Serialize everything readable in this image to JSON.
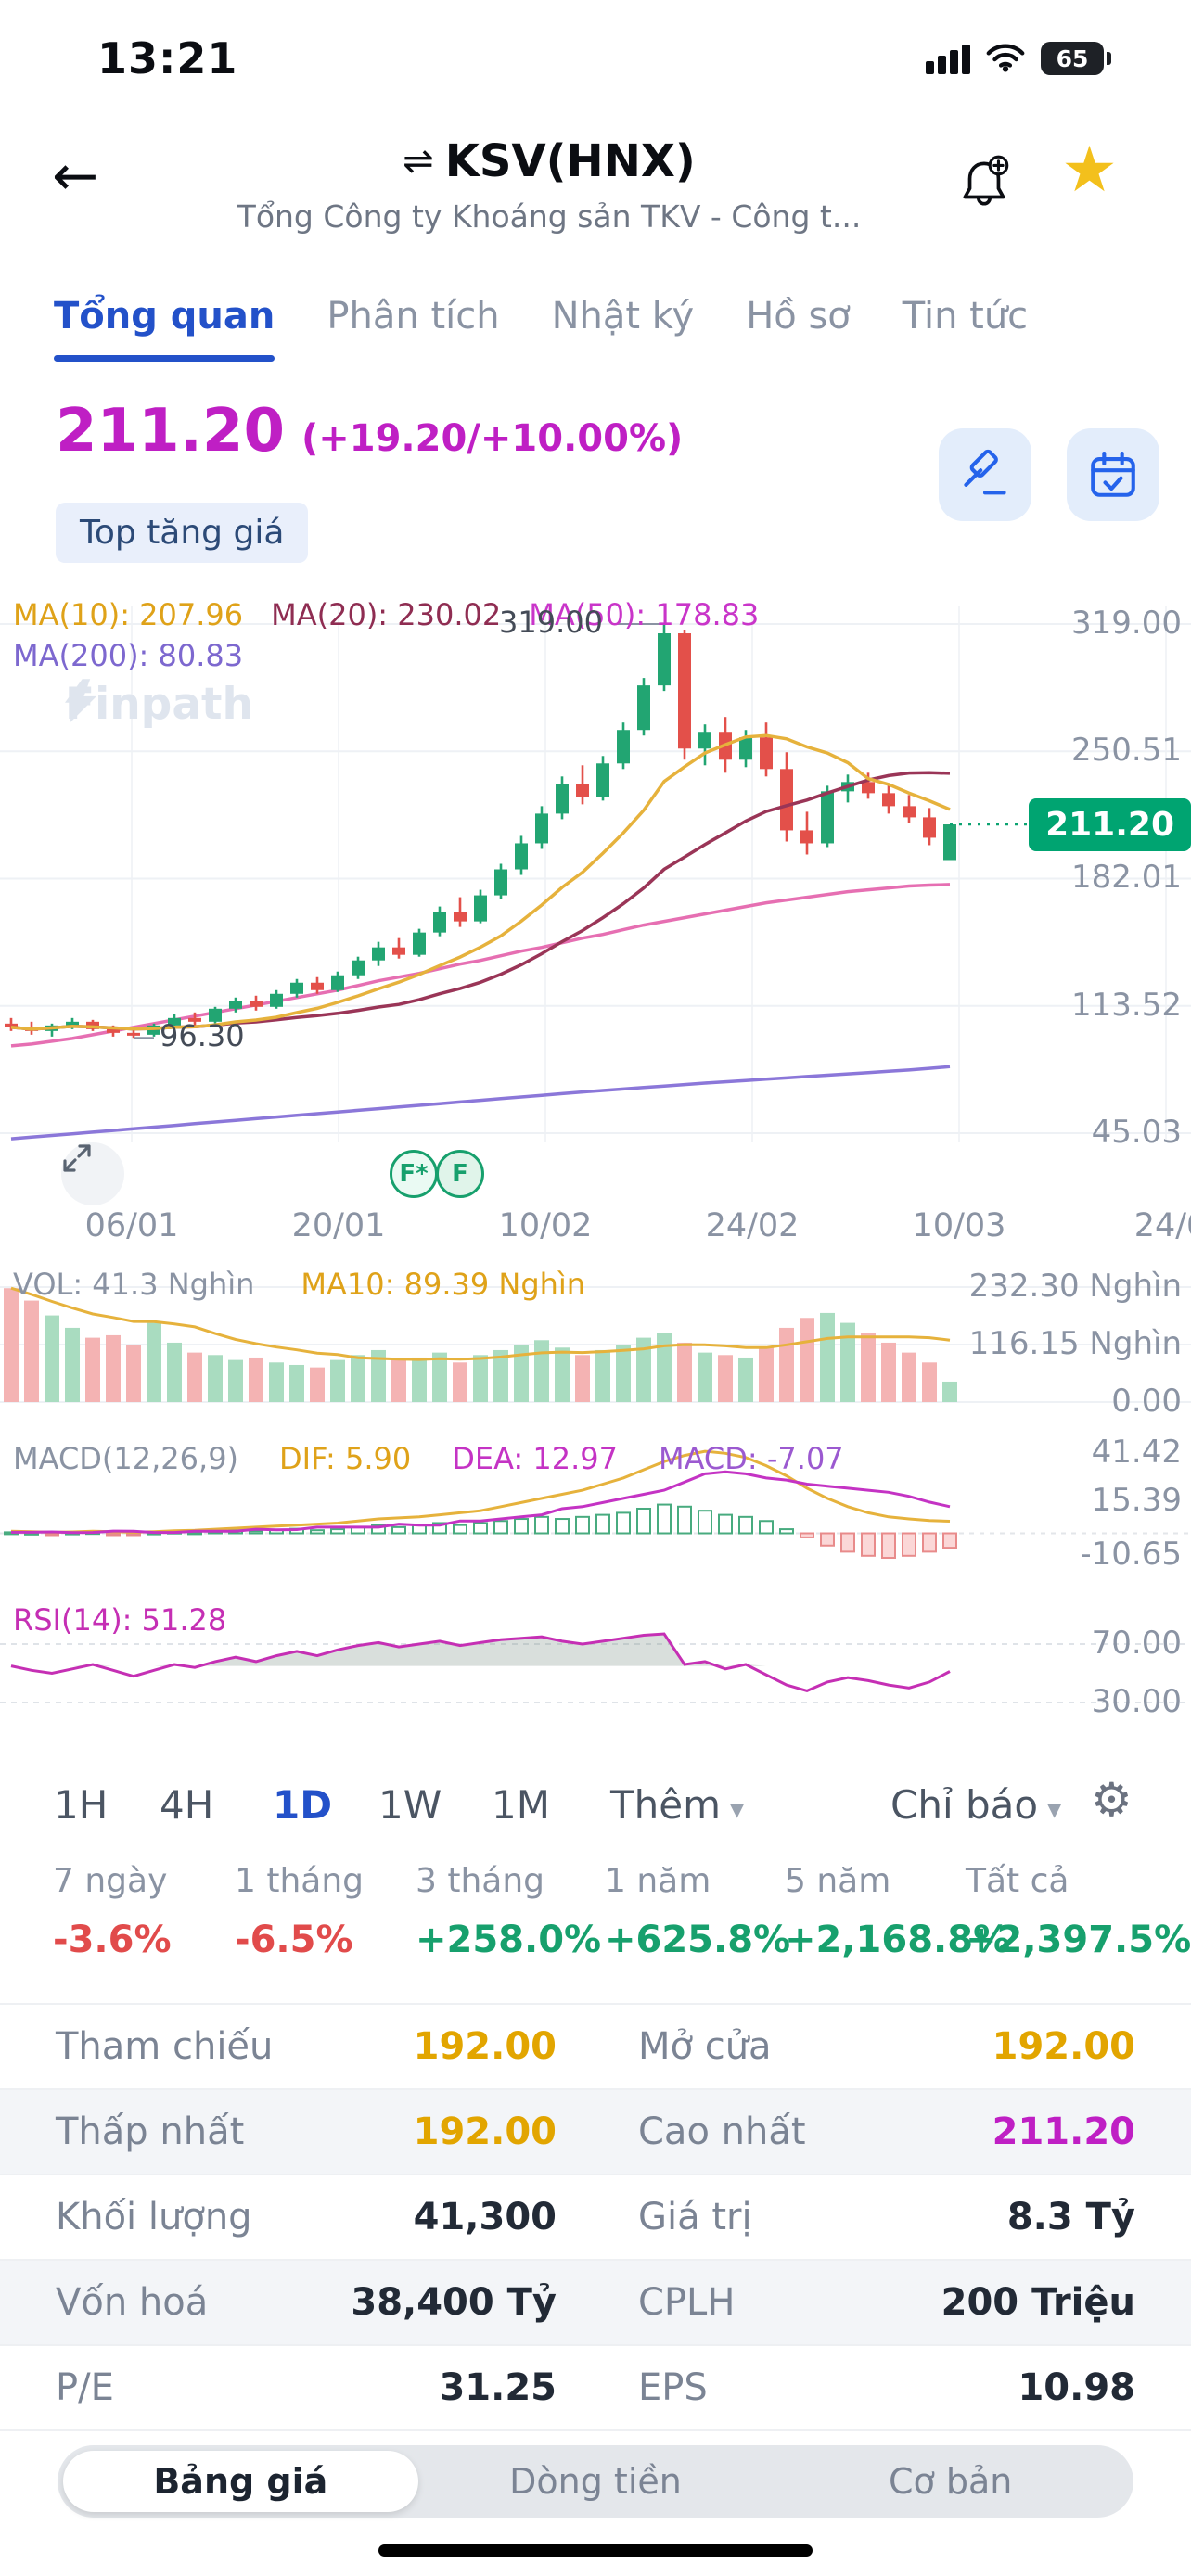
{
  "status_bar": {
    "time": "13:21",
    "battery_level": "65"
  },
  "icons": {
    "back": "←",
    "compare": "⇌",
    "star": "★",
    "caret": "▾",
    "gear": "⚙"
  },
  "header": {
    "title": "KSV(HNX)",
    "subtitle": "Tổng Công ty Khoáng sản TKV - Công t..."
  },
  "tabs": {
    "items": [
      {
        "label": "Tổng quan",
        "active": true
      },
      {
        "label": "Phân tích",
        "active": false
      },
      {
        "label": "Nhật ký",
        "active": false
      },
      {
        "label": "Hồ sơ",
        "active": false
      },
      {
        "label": "Tin tức",
        "active": false
      }
    ]
  },
  "quote": {
    "price": "211.20",
    "change": "(+19.20/+10.00%)",
    "badge": "Top tăng giá"
  },
  "chart": {
    "ma10_label": "MA(10): 207.96",
    "ma20_label": "MA(20): 230.02",
    "ma50_label": "MA(50): 178.83",
    "ma200_label": "MA(200): 80.83",
    "watermark": "Finpath",
    "vol_label": "VOL: 41.3 Nghìn",
    "vol_ma_label": "MA10: 89.39 Nghìn",
    "macd_label": "MACD(12,26,9)",
    "dif_label": "DIF: 5.90",
    "dea_label": "DEA: 12.97",
    "macd_val_label": "MACD: -7.07",
    "rsi_label": "RSI(14): 51.28",
    "fscore_badges": [
      "F*",
      "F"
    ]
  },
  "chart_data": {
    "type": "candlestick+indicators",
    "x_ticks": [
      "06/01",
      "20/01",
      "10/02",
      "24/02",
      "10/03",
      "24/0"
    ],
    "main": {
      "y_ticks": [
        "319.00",
        "250.51",
        "182.01",
        "113.52",
        "45.03"
      ],
      "y_max": 319.0,
      "y_min": 45.03,
      "annotations": {
        "peak": "319.00",
        "low": "96.30"
      },
      "last_price": 211.2,
      "candles": [
        [
          104,
          107,
          100,
          102
        ],
        [
          102,
          105,
          98,
          100
        ],
        [
          100,
          104,
          97,
          103
        ],
        [
          103,
          107,
          101,
          105
        ],
        [
          105,
          106,
          100,
          101
        ],
        [
          101,
          103,
          97,
          99
        ],
        [
          99,
          101,
          96.3,
          98
        ],
        [
          98,
          104,
          97,
          103
        ],
        [
          103,
          109,
          102,
          107
        ],
        [
          107,
          110,
          103,
          105
        ],
        [
          105,
          113,
          104,
          112
        ],
        [
          112,
          118,
          110,
          116
        ],
        [
          116,
          119,
          111,
          113
        ],
        [
          113,
          122,
          112,
          120
        ],
        [
          120,
          128,
          118,
          126
        ],
        [
          126,
          129,
          120,
          122
        ],
        [
          122,
          132,
          121,
          130
        ],
        [
          130,
          140,
          128,
          138
        ],
        [
          138,
          148,
          135,
          145
        ],
        [
          145,
          150,
          139,
          141
        ],
        [
          141,
          155,
          140,
          153
        ],
        [
          153,
          167,
          151,
          164
        ],
        [
          164,
          172,
          156,
          159
        ],
        [
          159,
          176,
          158,
          173
        ],
        [
          173,
          190,
          171,
          187
        ],
        [
          187,
          205,
          184,
          201
        ],
        [
          201,
          221,
          198,
          217
        ],
        [
          217,
          237,
          214,
          233
        ],
        [
          233,
          243,
          222,
          226
        ],
        [
          226,
          248,
          224,
          244
        ],
        [
          244,
          266,
          241,
          262
        ],
        [
          262,
          290,
          259,
          286
        ],
        [
          286,
          319,
          283,
          314
        ],
        [
          314,
          316,
          246,
          252
        ],
        [
          252,
          265,
          243,
          261
        ],
        [
          261,
          269,
          239,
          246
        ],
        [
          246,
          262,
          242,
          258
        ],
        [
          258,
          266,
          237,
          241
        ],
        [
          241,
          250,
          202,
          208
        ],
        [
          208,
          218,
          195,
          201
        ],
        [
          201,
          232,
          199,
          229
        ],
        [
          229,
          238,
          223,
          234
        ],
        [
          234,
          239,
          225,
          228
        ],
        [
          228,
          233,
          217,
          221
        ],
        [
          221,
          227,
          212,
          215
        ],
        [
          215,
          220,
          200,
          204
        ],
        [
          192,
          211.2,
          192,
          211.2
        ]
      ],
      "ma50": [
        92,
        93,
        94.5,
        96,
        98,
        100,
        102,
        104,
        106,
        108,
        110,
        112,
        114,
        116,
        118,
        120,
        122,
        124.5,
        127,
        129,
        131,
        133.5,
        136,
        138,
        140.5,
        143,
        145,
        147.5,
        150,
        152,
        154.5,
        157,
        159,
        161,
        163,
        165,
        167,
        169,
        170.5,
        172,
        173.5,
        175,
        176,
        177,
        178,
        178.5,
        178.83
      ],
      "ma200": [
        42,
        42.9,
        43.8,
        44.7,
        45.6,
        46.5,
        47.4,
        48.3,
        49.2,
        50.1,
        51,
        51.9,
        52.8,
        53.7,
        54.6,
        55.5,
        56.4,
        57.3,
        58.2,
        59.1,
        60,
        60.9,
        61.8,
        62.7,
        63.6,
        64.5,
        65.4,
        66.3,
        67.2,
        68,
        68.8,
        69.6,
        70.4,
        71.2,
        72,
        72.7,
        73.4,
        74.1,
        74.8,
        75.5,
        76.2,
        76.9,
        77.6,
        78.3,
        79,
        79.9,
        80.83
      ]
    },
    "volume": {
      "y_ticks": [
        "232.30 Nghìn",
        "116.15 Nghìn",
        "0.00"
      ],
      "max": 232.3,
      "values": [
        230,
        205,
        175,
        150,
        130,
        135,
        115,
        160,
        120,
        100,
        95,
        85,
        90,
        80,
        75,
        70,
        85,
        95,
        105,
        85,
        90,
        100,
        80,
        95,
        105,
        115,
        125,
        110,
        95,
        105,
        115,
        130,
        140,
        120,
        100,
        95,
        90,
        110,
        150,
        170,
        180,
        160,
        140,
        120,
        100,
        80,
        41.3
      ]
    },
    "macd": {
      "y_ticks": [
        "41.42",
        "15.39",
        "-10.65"
      ],
      "dif": [
        1,
        0.8,
        0.5,
        0.7,
        1,
        0.8,
        0.5,
        0.8,
        1.2,
        1.5,
        2,
        2.5,
        3,
        3.5,
        4,
        4.5,
        5,
        6,
        7,
        7.5,
        8,
        9,
        10,
        11,
        13,
        15,
        17,
        19,
        21,
        24,
        27,
        31,
        35,
        38,
        40,
        39,
        37,
        33,
        28,
        22,
        17,
        13,
        10,
        8,
        7,
        6.2,
        5.9
      ],
      "hist": [
        0.5,
        0.3,
        -0.2,
        0.4,
        0.6,
        -0.3,
        -0.5,
        0.4,
        0.8,
        0.5,
        1,
        1.5,
        1,
        1.8,
        2.2,
        1.5,
        2,
        3,
        4,
        3,
        4,
        5,
        4,
        5,
        6,
        7,
        8,
        7,
        8,
        9,
        10,
        12,
        14,
        13,
        11,
        9,
        8,
        6,
        2,
        -2,
        -6,
        -9,
        -11,
        -12,
        -11,
        -9,
        -7.07
      ]
    },
    "rsi": {
      "y_ticks": [
        "70.00",
        "30.00"
      ],
      "values": [
        55,
        52,
        50,
        53,
        56,
        52,
        48,
        52,
        56,
        54,
        58,
        61,
        58,
        62,
        65,
        62,
        66,
        69,
        71,
        68,
        70,
        72,
        69,
        71,
        73,
        74,
        75,
        72,
        70,
        72,
        74,
        76,
        77,
        56,
        58,
        53,
        56,
        49,
        42,
        38,
        44,
        47,
        45,
        42,
        40,
        44,
        51.28
      ]
    }
  },
  "indicator_bar": {
    "timeframes": [
      "1H",
      "4H",
      "1D",
      "1W",
      "1M"
    ],
    "active": "1D",
    "more_label": "Thêm",
    "indicators_label": "Chỉ báo"
  },
  "performance": {
    "items": [
      {
        "label": "7 ngày",
        "value": "-3.6%"
      },
      {
        "label": "1 tháng",
        "value": "-6.5%"
      },
      {
        "label": "3 tháng",
        "value": "+258.0%"
      },
      {
        "label": "1 năm",
        "value": "+625.8%"
      },
      {
        "label": "5 năm",
        "value": "+2,168.8%"
      },
      {
        "label": "Tất cả",
        "value": "+2,397.5%"
      }
    ]
  },
  "stats_table": {
    "rows": [
      {
        "l1": "Tham chiếu",
        "v1": "192.00",
        "l2": "Mở cửa",
        "v2": "192.00"
      },
      {
        "l1": "Thấp nhất",
        "v1": "192.00",
        "l2": "Cao nhất",
        "v2": "211.20"
      },
      {
        "l1": "Khối lượng",
        "v1": "41,300",
        "l2": "Giá trị",
        "v2": "8.3 Tỷ"
      },
      {
        "l1": "Vốn hoá",
        "v1": "38,400 Tỷ",
        "l2": "CPLH",
        "v2": "200 Triệu"
      },
      {
        "l1": "P/E",
        "v1": "31.25",
        "l2": "EPS",
        "v2": "10.98"
      }
    ]
  },
  "segmented": {
    "items": [
      "Bảng giá",
      "Dòng tiền",
      "Cơ bản"
    ],
    "active": 0
  },
  "colors": {
    "accent_blue": "#2351c9",
    "magenta": "#bf1fc4",
    "up_green": "#17a06d",
    "down_red": "#e14b4b",
    "ref_yellow": "#e2a500",
    "tag_green": "#00a471"
  }
}
